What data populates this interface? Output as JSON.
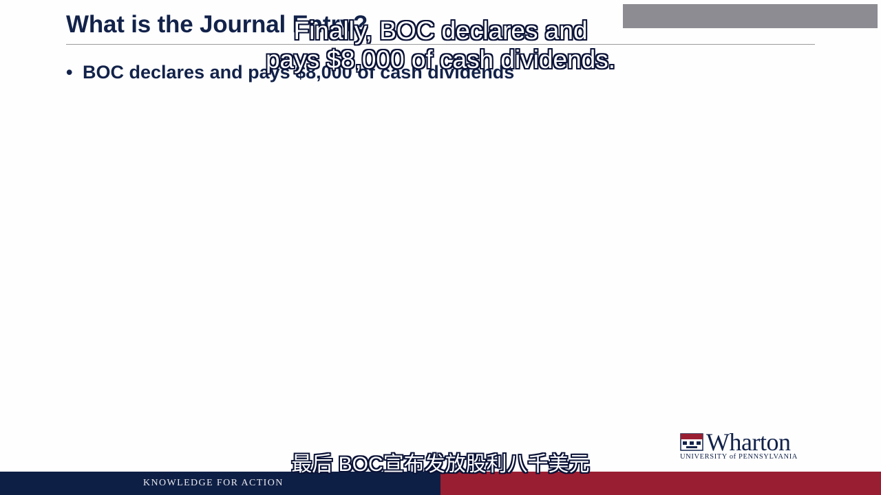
{
  "slide": {
    "title": "What is the Journal Entry?",
    "bullet_marker": "•",
    "bullet": "BOC declares and pays $8,000 of cash dividends"
  },
  "subtitles": {
    "english_line1": "Finally, BOC declares and",
    "english_line2": "pays $8,000 of cash dividends.",
    "chinese": "最后 BOC宣布发放股利八千美元"
  },
  "logo": {
    "wordmark": "Wharton",
    "subtext": "UNIVERSITY of PENNSYLVANIA"
  },
  "footer": {
    "tagline": "KNOWLEDGE FOR ACTION"
  },
  "colors": {
    "navy": "#12224a",
    "footer_navy": "#0e1f45",
    "footer_red": "#9a1e32",
    "corner_gray": "#8c8c92"
  }
}
